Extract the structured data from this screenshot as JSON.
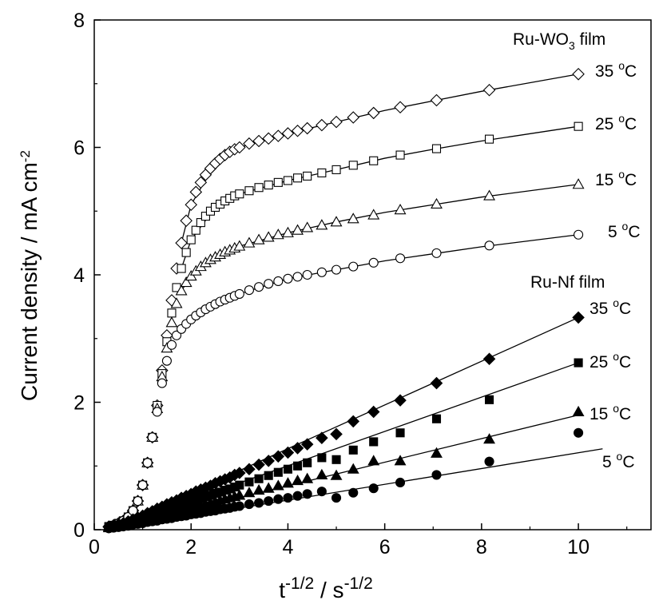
{
  "chart_data": {
    "type": "scatter",
    "xlabel": "t-1/2 / s-1/2",
    "ylabel": "Current density / mA cm-2",
    "xlim": [
      0,
      11.5
    ],
    "ylim": [
      0,
      8
    ],
    "x_ticks": [
      0,
      2,
      4,
      6,
      8,
      10
    ],
    "y_ticks": [
      0,
      2,
      4,
      6,
      8
    ],
    "x_tick_labels": [
      "0",
      "2",
      "4",
      "6",
      "8",
      "10"
    ],
    "y_tick_labels": [
      "0",
      "2",
      "4",
      "6",
      "8"
    ],
    "grid": false,
    "axis_title": {
      "x": {
        "base1": "t",
        "sup1": "-1/2",
        "mid": " / s",
        "sup2": "-1/2"
      },
      "y": {
        "text": "Current density / mA cm",
        "sup": "-2"
      }
    },
    "groups": [
      {
        "id": "ru-wo3",
        "label_main": "Ru-WO",
        "label_sub": "3",
        "label_tail": " film",
        "fill": "hollow"
      },
      {
        "id": "ru-nf",
        "label": "Ru-Nf film",
        "fill": "filled"
      }
    ],
    "series": [
      {
        "name": "35 °C",
        "group": "ru-wo3",
        "marker": "diamond",
        "hollow": true,
        "temp": "35",
        "deg": "o",
        "unit": "C",
        "x": [
          0.3,
          0.4,
          0.5,
          0.6,
          0.7,
          0.8,
          0.9,
          1.0,
          1.1,
          1.2,
          1.3,
          1.4,
          1.5,
          1.6,
          1.7,
          1.8,
          1.9,
          2.0,
          2.1,
          2.2,
          2.3,
          2.4,
          2.5,
          2.6,
          2.7,
          2.8,
          2.9,
          3.0,
          3.2,
          3.4,
          3.6,
          3.8,
          4.0,
          4.2,
          4.4,
          4.7,
          5.0,
          5.35,
          5.77,
          6.32,
          7.07,
          8.16,
          10.0
        ],
        "y": [
          0.05,
          0.07,
          0.1,
          0.14,
          0.2,
          0.3,
          0.45,
          0.7,
          1.05,
          1.45,
          1.95,
          2.5,
          3.05,
          3.6,
          4.1,
          4.5,
          4.85,
          5.1,
          5.3,
          5.45,
          5.57,
          5.67,
          5.75,
          5.82,
          5.88,
          5.93,
          5.97,
          6.0,
          6.06,
          6.1,
          6.14,
          6.18,
          6.22,
          6.26,
          6.3,
          6.35,
          6.4,
          6.47,
          6.54,
          6.63,
          6.74,
          6.9,
          7.15
        ],
        "fit": [
          [
            1.8,
            4.5
          ],
          [
            2.0,
            5.1
          ],
          [
            2.5,
            5.75
          ],
          [
            3.0,
            6.0
          ],
          [
            4.0,
            6.22
          ],
          [
            5.0,
            6.4
          ],
          [
            6.0,
            6.58
          ],
          [
            7.0,
            6.73
          ],
          [
            8.0,
            6.88
          ],
          [
            10.0,
            7.15
          ]
        ]
      },
      {
        "name": "25 °C",
        "group": "ru-wo3",
        "marker": "square",
        "hollow": true,
        "temp": "25",
        "deg": "o",
        "unit": "C",
        "x": [
          0.3,
          0.4,
          0.5,
          0.6,
          0.7,
          0.8,
          0.9,
          1.0,
          1.1,
          1.2,
          1.3,
          1.4,
          1.5,
          1.6,
          1.7,
          1.8,
          1.9,
          2.0,
          2.1,
          2.2,
          2.3,
          2.4,
          2.5,
          2.6,
          2.7,
          2.8,
          2.9,
          3.0,
          3.2,
          3.4,
          3.6,
          3.8,
          4.0,
          4.2,
          4.4,
          4.7,
          5.0,
          5.35,
          5.77,
          6.32,
          7.07,
          8.16,
          10.0
        ],
        "y": [
          0.05,
          0.07,
          0.1,
          0.14,
          0.2,
          0.3,
          0.45,
          0.7,
          1.05,
          1.45,
          1.95,
          2.45,
          2.95,
          3.4,
          3.8,
          4.1,
          4.35,
          4.55,
          4.7,
          4.82,
          4.92,
          5.0,
          5.06,
          5.11,
          5.16,
          5.2,
          5.24,
          5.27,
          5.32,
          5.37,
          5.41,
          5.45,
          5.48,
          5.52,
          5.55,
          5.6,
          5.65,
          5.72,
          5.79,
          5.88,
          5.98,
          6.13,
          6.33
        ],
        "fit": [
          [
            1.8,
            4.1
          ],
          [
            2.0,
            4.55
          ],
          [
            2.5,
            5.06
          ],
          [
            3.0,
            5.27
          ],
          [
            4.0,
            5.48
          ],
          [
            5.0,
            5.65
          ],
          [
            6.0,
            5.83
          ],
          [
            7.0,
            5.97
          ],
          [
            8.0,
            6.1
          ],
          [
            10.0,
            6.33
          ]
        ]
      },
      {
        "name": "15 °C",
        "group": "ru-wo3",
        "marker": "triangle",
        "hollow": true,
        "temp": "15",
        "deg": "o",
        "unit": "C",
        "x": [
          0.3,
          0.4,
          0.5,
          0.6,
          0.7,
          0.8,
          0.9,
          1.0,
          1.1,
          1.2,
          1.3,
          1.4,
          1.5,
          1.6,
          1.7,
          1.8,
          1.9,
          2.0,
          2.1,
          2.2,
          2.3,
          2.4,
          2.5,
          2.6,
          2.7,
          2.8,
          2.9,
          3.0,
          3.2,
          3.4,
          3.6,
          3.8,
          4.0,
          4.2,
          4.4,
          4.7,
          5.0,
          5.35,
          5.77,
          6.32,
          7.07,
          8.16,
          10.0
        ],
        "y": [
          0.05,
          0.07,
          0.1,
          0.14,
          0.2,
          0.3,
          0.45,
          0.7,
          1.05,
          1.45,
          1.9,
          2.4,
          2.85,
          3.25,
          3.55,
          3.75,
          3.88,
          3.98,
          4.06,
          4.13,
          4.19,
          4.24,
          4.28,
          4.32,
          4.36,
          4.39,
          4.42,
          4.45,
          4.5,
          4.55,
          4.59,
          4.63,
          4.66,
          4.7,
          4.74,
          4.78,
          4.83,
          4.88,
          4.94,
          5.02,
          5.11,
          5.24,
          5.42
        ],
        "fit": [
          [
            1.8,
            3.75
          ],
          [
            2.0,
            3.98
          ],
          [
            2.5,
            4.28
          ],
          [
            3.0,
            4.45
          ],
          [
            4.0,
            4.66
          ],
          [
            5.0,
            4.83
          ],
          [
            6.0,
            4.98
          ],
          [
            7.0,
            5.1
          ],
          [
            8.0,
            5.22
          ],
          [
            10.0,
            5.42
          ]
        ]
      },
      {
        "name": "5 °C",
        "group": "ru-wo3",
        "marker": "circle",
        "hollow": true,
        "temp": "5",
        "deg": "o",
        "unit": "C",
        "x": [
          0.3,
          0.4,
          0.5,
          0.6,
          0.7,
          0.8,
          0.9,
          1.0,
          1.1,
          1.2,
          1.3,
          1.4,
          1.5,
          1.6,
          1.7,
          1.8,
          1.9,
          2.0,
          2.1,
          2.2,
          2.3,
          2.4,
          2.5,
          2.6,
          2.7,
          2.8,
          2.9,
          3.0,
          3.2,
          3.4,
          3.6,
          3.8,
          4.0,
          4.2,
          4.4,
          4.7,
          5.0,
          5.35,
          5.77,
          6.32,
          7.07,
          8.16,
          10.0
        ],
        "y": [
          0.05,
          0.07,
          0.1,
          0.14,
          0.2,
          0.3,
          0.45,
          0.7,
          1.05,
          1.45,
          1.85,
          2.3,
          2.65,
          2.9,
          3.05,
          3.15,
          3.23,
          3.3,
          3.36,
          3.41,
          3.46,
          3.5,
          3.54,
          3.58,
          3.61,
          3.64,
          3.67,
          3.7,
          3.76,
          3.81,
          3.86,
          3.9,
          3.94,
          3.97,
          4.0,
          4.04,
          4.08,
          4.13,
          4.19,
          4.26,
          4.34,
          4.46,
          4.63
        ],
        "fit": [
          [
            1.8,
            3.15
          ],
          [
            2.0,
            3.3
          ],
          [
            2.5,
            3.54
          ],
          [
            3.0,
            3.7
          ],
          [
            4.0,
            3.94
          ],
          [
            5.0,
            4.08
          ],
          [
            6.0,
            4.22
          ],
          [
            7.0,
            4.33
          ],
          [
            8.0,
            4.44
          ],
          [
            10.0,
            4.63
          ]
        ]
      },
      {
        "name": "35 °C",
        "group": "ru-nf",
        "marker": "diamond",
        "hollow": false,
        "temp": "35",
        "deg": "o",
        "unit": "C",
        "x": [
          0.3,
          0.4,
          0.5,
          0.6,
          0.7,
          0.8,
          0.9,
          1.0,
          1.1,
          1.2,
          1.3,
          1.4,
          1.5,
          1.6,
          1.7,
          1.8,
          1.9,
          2.0,
          2.1,
          2.2,
          2.3,
          2.4,
          2.5,
          2.6,
          2.7,
          2.8,
          2.9,
          3.0,
          3.2,
          3.4,
          3.6,
          3.8,
          4.0,
          4.2,
          4.4,
          4.7,
          5.0,
          5.35,
          5.77,
          6.32,
          7.07,
          8.16,
          10.0
        ],
        "y": [
          0.04,
          0.06,
          0.08,
          0.1,
          0.13,
          0.16,
          0.19,
          0.22,
          0.26,
          0.29,
          0.33,
          0.36,
          0.4,
          0.43,
          0.46,
          0.5,
          0.53,
          0.56,
          0.6,
          0.63,
          0.66,
          0.69,
          0.73,
          0.76,
          0.79,
          0.82,
          0.86,
          0.89,
          0.95,
          1.02,
          1.08,
          1.15,
          1.21,
          1.28,
          1.34,
          1.44,
          1.5,
          1.7,
          1.85,
          2.03,
          2.3,
          2.68,
          3.33
        ],
        "fit": [
          [
            0.5,
            0.07
          ],
          [
            10.0,
            3.33
          ]
        ]
      },
      {
        "name": "25 °C",
        "group": "ru-nf",
        "marker": "square",
        "hollow": false,
        "temp": "25",
        "deg": "o",
        "unit": "C",
        "x": [
          0.3,
          0.4,
          0.5,
          0.6,
          0.7,
          0.8,
          0.9,
          1.0,
          1.1,
          1.2,
          1.3,
          1.4,
          1.5,
          1.6,
          1.7,
          1.8,
          1.9,
          2.0,
          2.1,
          2.2,
          2.3,
          2.4,
          2.5,
          2.6,
          2.7,
          2.8,
          2.9,
          3.0,
          3.2,
          3.4,
          3.6,
          3.8,
          4.0,
          4.2,
          4.4,
          4.7,
          5.0,
          5.35,
          5.77,
          6.32,
          7.07,
          8.16,
          10.0
        ],
        "y": [
          0.04,
          0.05,
          0.07,
          0.09,
          0.11,
          0.13,
          0.16,
          0.18,
          0.21,
          0.23,
          0.26,
          0.28,
          0.31,
          0.34,
          0.36,
          0.39,
          0.41,
          0.44,
          0.46,
          0.49,
          0.52,
          0.54,
          0.57,
          0.59,
          0.62,
          0.64,
          0.67,
          0.7,
          0.75,
          0.8,
          0.85,
          0.9,
          0.95,
          1.0,
          1.05,
          1.13,
          1.1,
          1.25,
          1.38,
          1.52,
          1.74,
          2.04,
          2.62
        ],
        "fit": [
          [
            0.5,
            0.06
          ],
          [
            10.0,
            2.62
          ]
        ]
      },
      {
        "name": "15 °C",
        "group": "ru-nf",
        "marker": "triangle",
        "hollow": false,
        "temp": "15",
        "deg": "o",
        "unit": "C",
        "x": [
          0.3,
          0.4,
          0.5,
          0.6,
          0.7,
          0.8,
          0.9,
          1.0,
          1.1,
          1.2,
          1.3,
          1.4,
          1.5,
          1.6,
          1.7,
          1.8,
          1.9,
          2.0,
          2.1,
          2.2,
          2.3,
          2.4,
          2.5,
          2.6,
          2.7,
          2.8,
          2.9,
          3.0,
          3.2,
          3.4,
          3.6,
          3.8,
          4.0,
          4.2,
          4.4,
          4.7,
          5.0,
          5.35,
          5.77,
          6.32,
          7.07,
          8.16,
          10.0
        ],
        "y": [
          0.03,
          0.04,
          0.05,
          0.07,
          0.08,
          0.1,
          0.12,
          0.14,
          0.16,
          0.18,
          0.2,
          0.22,
          0.24,
          0.26,
          0.28,
          0.3,
          0.32,
          0.34,
          0.36,
          0.38,
          0.4,
          0.42,
          0.44,
          0.46,
          0.48,
          0.5,
          0.52,
          0.54,
          0.58,
          0.62,
          0.65,
          0.69,
          0.73,
          0.77,
          0.8,
          0.86,
          0.85,
          0.95,
          1.08,
          1.08,
          1.2,
          1.42,
          1.85
        ],
        "fit": [
          [
            0.5,
            0.04
          ],
          [
            10.0,
            1.8
          ]
        ]
      },
      {
        "name": "5 °C",
        "group": "ru-nf",
        "marker": "circle",
        "hollow": false,
        "temp": "5",
        "deg": "o",
        "unit": "C",
        "x": [
          0.3,
          0.4,
          0.5,
          0.6,
          0.7,
          0.8,
          0.9,
          1.0,
          1.1,
          1.2,
          1.3,
          1.4,
          1.5,
          1.6,
          1.7,
          1.8,
          1.9,
          2.0,
          2.1,
          2.2,
          2.3,
          2.4,
          2.5,
          2.6,
          2.7,
          2.8,
          2.9,
          3.0,
          3.2,
          3.4,
          3.6,
          3.8,
          4.0,
          4.2,
          4.4,
          4.7,
          5.0,
          5.35,
          5.77,
          6.32,
          7.07,
          8.16,
          10.0
        ],
        "y": [
          0.02,
          0.03,
          0.04,
          0.05,
          0.06,
          0.08,
          0.09,
          0.1,
          0.12,
          0.13,
          0.14,
          0.16,
          0.17,
          0.18,
          0.2,
          0.21,
          0.22,
          0.24,
          0.25,
          0.26,
          0.28,
          0.29,
          0.3,
          0.32,
          0.33,
          0.34,
          0.36,
          0.37,
          0.4,
          0.42,
          0.45,
          0.48,
          0.5,
          0.53,
          0.56,
          0.6,
          0.5,
          0.58,
          0.65,
          0.74,
          0.86,
          1.07,
          1.52
        ],
        "fit": [
          [
            0.5,
            0.03
          ],
          [
            10.5,
            1.27
          ]
        ]
      }
    ]
  }
}
